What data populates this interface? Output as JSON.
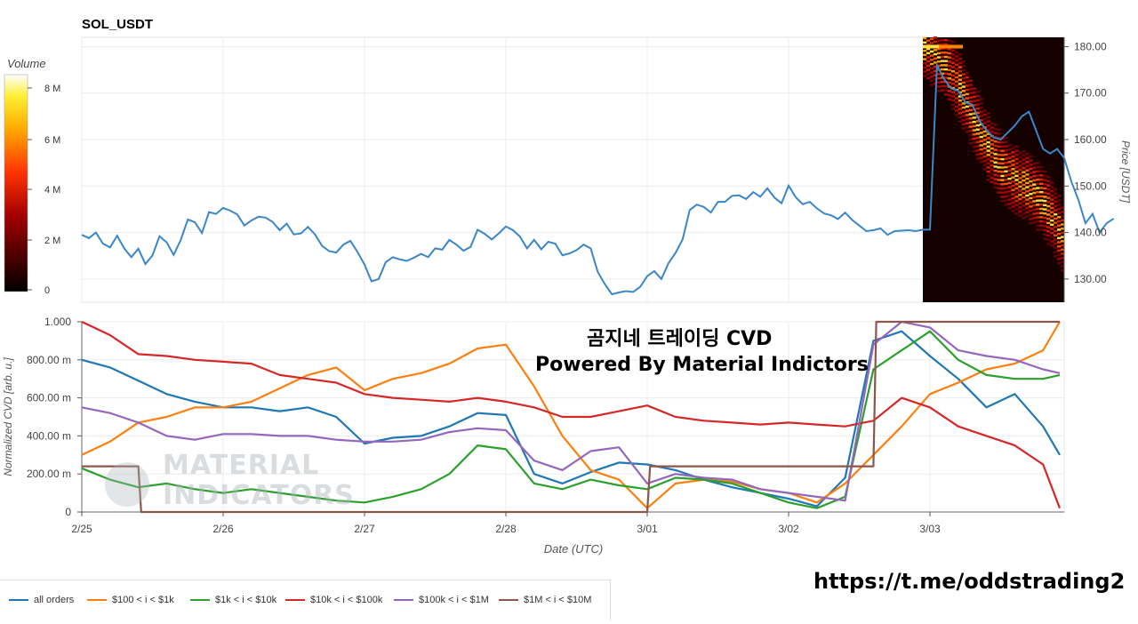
{
  "top_chart": {
    "title": "SOL_USDT",
    "colorbar_label": "Volume",
    "colorbar_ticks": [
      "8 M",
      "6 M",
      "4 M",
      "2 M",
      "0"
    ],
    "price_axis_label": "Price [USDT]",
    "price_ticks": [
      "180.00",
      "170.00",
      "160.00",
      "150.00",
      "140.00",
      "130.00"
    ]
  },
  "bottom_chart": {
    "ylabel": "Normalized CVD [arb. u.]",
    "xlabel": "Date (UTC)",
    "y_ticks": [
      "1.000",
      "800.00 m",
      "600.00 m",
      "400.00 m",
      "200.00 m",
      "0"
    ],
    "x_ticks": [
      "2/25",
      "2/26",
      "2/27",
      "2/28",
      "3/01",
      "3/02",
      "3/03"
    ]
  },
  "overlay": {
    "korean_title": "곰지네 트레이딩 CVD",
    "powered_by": "Powered By Material Indictors",
    "watermark_line1": "MATERIAL",
    "watermark_line2": "INDICATORS",
    "url": "https://t.me/oddstrading2"
  },
  "legend": [
    {
      "name": "all orders",
      "color": "#1f77b4"
    },
    {
      "name": "$100 < i < $1k",
      "color": "#ff7f0e"
    },
    {
      "name": "$1k < i < $10k",
      "color": "#2ca02c"
    },
    {
      "name": "$10k < i < $100k",
      "color": "#d62728"
    },
    {
      "name": "$100k < i < $1M",
      "color": "#9467bd"
    },
    {
      "name": "$1M < i < $10M",
      "color": "#8c564b"
    }
  ],
  "chart_data": [
    {
      "type": "line",
      "title": "SOL_USDT",
      "ylabel": "Price [USDT]",
      "ylim": [
        125,
        182
      ],
      "x_range": [
        "2/25",
        "3/03"
      ],
      "series": [
        {
          "name": "price",
          "x": [
            0,
            0.05,
            0.1,
            0.15,
            0.2,
            0.25,
            0.3,
            0.35,
            0.4,
            0.45,
            0.5,
            0.55,
            0.6,
            0.65,
            0.7,
            0.75,
            0.8,
            0.85,
            0.9,
            0.95,
            1.0,
            1.05,
            1.1,
            1.15,
            1.2,
            1.25,
            1.3,
            1.35,
            1.4,
            1.45,
            1.5,
            1.55,
            1.6,
            1.65,
            1.7,
            1.75,
            1.8,
            1.85,
            1.9,
            1.95,
            2.0,
            2.05,
            2.1,
            2.15,
            2.2,
            2.25,
            2.3,
            2.35,
            2.4,
            2.45,
            2.5,
            2.55,
            2.6,
            2.65,
            2.7,
            2.75,
            2.8,
            2.85,
            2.9,
            2.95,
            3.0,
            3.05,
            3.1,
            3.15,
            3.2,
            3.25,
            3.3,
            3.35,
            3.4,
            3.45,
            3.5,
            3.55,
            3.6,
            3.65,
            3.7,
            3.75,
            3.8,
            3.85,
            3.9,
            3.95,
            4.0,
            4.05,
            4.1,
            4.15,
            4.2,
            4.25,
            4.3,
            4.35,
            4.4,
            4.45,
            4.5,
            4.55,
            4.6,
            4.65,
            4.7,
            4.75,
            4.8,
            4.85,
            4.9,
            4.95,
            5.0,
            5.05,
            5.1,
            5.15,
            5.2,
            5.25,
            5.3,
            5.35,
            5.4,
            5.45,
            5.5,
            5.55,
            5.6,
            5.65,
            5.7,
            5.75,
            5.8,
            5.85,
            5.9,
            5.95,
            6.0
          ],
          "y": [
            139.5,
            138.8,
            140.0,
            137.6,
            136.8,
            139.3,
            136.6,
            134.7,
            136.5,
            133.2,
            135.1,
            139.2,
            137.9,
            135.2,
            138.4,
            142.8,
            142.2,
            139.9,
            144.4,
            144.0,
            145.3,
            144.7,
            143.9,
            141.5,
            142.6,
            143.4,
            143.2,
            142.3,
            140.5,
            141.9,
            139.6,
            139.8,
            141.2,
            139.6,
            137.1,
            136.0,
            135.7,
            137.4,
            138.2,
            135.8,
            133.1,
            129.5,
            130.0,
            133.6,
            134.7,
            134.2,
            133.9,
            134.6,
            135.4,
            134.7,
            136.6,
            136.3,
            138.4,
            137.4,
            136.1,
            136.9,
            140.6,
            139.7,
            138.5,
            139.8,
            141.3,
            140.5,
            139.1,
            136.6,
            138.4,
            136.4,
            138.0,
            137.6,
            135.1,
            135.5,
            136.2,
            137.4,
            136.6,
            131.5,
            128.9,
            126.7,
            127.1,
            127.4,
            127.2,
            128.3,
            130.6,
            131.7,
            130.0,
            133.4,
            135.6,
            138.5,
            144.8,
            146.0,
            145.5,
            144.3,
            146.6,
            146.6,
            147.9,
            148.0,
            147.2,
            148.7,
            147.7,
            149.5,
            147.5,
            146.3,
            150.1,
            147.6,
            146.1,
            146.6,
            145.2,
            144.1,
            143.7,
            142.9,
            144.3,
            142.7,
            141.5,
            140.3,
            140.5,
            140.9,
            139.5,
            140.3,
            140.4,
            140.5,
            140.3,
            140.6,
            140.6
          ]
        }
      ]
    },
    {
      "type": "line",
      "ylabel": "Normalized CVD [arb. u.]",
      "xlabel": "Date (UTC)",
      "ylim": [
        0,
        1.0
      ],
      "categories": [
        "2/25",
        "2/26",
        "2/27",
        "2/28",
        "3/01",
        "3/02",
        "3/03"
      ],
      "series": [
        {
          "name": "all orders",
          "x": [
            0,
            0.2,
            0.4,
            0.6,
            0.8,
            1.0,
            1.2,
            1.4,
            1.6,
            1.8,
            2.0,
            2.2,
            2.4,
            2.6,
            2.8,
            3.0,
            3.2,
            3.4,
            3.6,
            3.8,
            4.0,
            4.2,
            4.4,
            4.6,
            4.8,
            5.0,
            5.2,
            5.4,
            5.6,
            5.8,
            6.0,
            6.2,
            6.4,
            6.6,
            6.8,
            7.0
          ],
          "y": [
            0.8,
            0.76,
            0.69,
            0.62,
            0.58,
            0.55,
            0.55,
            0.53,
            0.55,
            0.5,
            0.36,
            0.39,
            0.4,
            0.45,
            0.52,
            0.51,
            0.2,
            0.15,
            0.21,
            0.26,
            0.25,
            0.22,
            0.17,
            0.13,
            0.1,
            0.07,
            0.03,
            0.18,
            0.9,
            0.95,
            0.82,
            0.7,
            0.55,
            0.62,
            0.45,
            0.3
          ]
        },
        {
          "name": "$100 < i < $1k",
          "x": [
            0,
            0.2,
            0.4,
            0.6,
            0.8,
            1.0,
            1.2,
            1.4,
            1.6,
            1.8,
            2.0,
            2.2,
            2.4,
            2.6,
            2.8,
            3.0,
            3.2,
            3.4,
            3.6,
            3.8,
            4.0,
            4.2,
            4.4,
            4.6,
            4.8,
            5.0,
            5.2,
            5.4,
            5.6,
            5.8,
            6.0,
            6.2,
            6.4,
            6.6,
            6.8,
            7.0
          ],
          "y": [
            0.3,
            0.37,
            0.47,
            0.5,
            0.55,
            0.55,
            0.58,
            0.65,
            0.72,
            0.76,
            0.64,
            0.7,
            0.73,
            0.78,
            0.86,
            0.88,
            0.66,
            0.4,
            0.22,
            0.17,
            0.02,
            0.15,
            0.17,
            0.16,
            0.12,
            0.1,
            0.05,
            0.15,
            0.3,
            0.45,
            0.62,
            0.68,
            0.75,
            0.78,
            0.85,
            1.0
          ]
        },
        {
          "name": "$1k < i < $10k",
          "x": [
            0,
            0.2,
            0.4,
            0.6,
            0.8,
            1.0,
            1.2,
            1.4,
            1.6,
            1.8,
            2.0,
            2.2,
            2.4,
            2.6,
            2.8,
            3.0,
            3.2,
            3.4,
            3.6,
            3.8,
            4.0,
            4.2,
            4.4,
            4.6,
            4.8,
            5.0,
            5.2,
            5.4,
            5.6,
            5.8,
            6.0,
            6.2,
            6.4,
            6.6,
            6.8,
            7.0
          ],
          "y": [
            0.23,
            0.17,
            0.13,
            0.15,
            0.12,
            0.1,
            0.12,
            0.1,
            0.08,
            0.06,
            0.05,
            0.08,
            0.12,
            0.2,
            0.35,
            0.33,
            0.15,
            0.12,
            0.17,
            0.14,
            0.12,
            0.18,
            0.17,
            0.15,
            0.1,
            0.05,
            0.02,
            0.08,
            0.75,
            0.85,
            0.95,
            0.8,
            0.72,
            0.7,
            0.7,
            0.72
          ]
        },
        {
          "name": "$10k < i < $100k",
          "x": [
            0,
            0.2,
            0.4,
            0.6,
            0.8,
            1.0,
            1.2,
            1.4,
            1.6,
            1.8,
            2.0,
            2.2,
            2.4,
            2.6,
            2.8,
            3.0,
            3.2,
            3.4,
            3.6,
            3.8,
            4.0,
            4.2,
            4.4,
            4.6,
            4.8,
            5.0,
            5.2,
            5.4,
            5.6,
            5.8,
            6.0,
            6.2,
            6.4,
            6.6,
            6.8,
            7.0
          ],
          "y": [
            1.0,
            0.93,
            0.83,
            0.82,
            0.8,
            0.79,
            0.78,
            0.72,
            0.7,
            0.68,
            0.62,
            0.6,
            0.59,
            0.58,
            0.6,
            0.58,
            0.55,
            0.5,
            0.5,
            0.53,
            0.56,
            0.5,
            0.48,
            0.47,
            0.46,
            0.47,
            0.46,
            0.45,
            0.48,
            0.6,
            0.55,
            0.45,
            0.4,
            0.35,
            0.25,
            0.02
          ]
        },
        {
          "name": "$100k < i < $1M",
          "x": [
            0,
            0.2,
            0.4,
            0.6,
            0.8,
            1.0,
            1.2,
            1.4,
            1.6,
            1.8,
            2.0,
            2.2,
            2.4,
            2.6,
            2.8,
            3.0,
            3.2,
            3.4,
            3.6,
            3.8,
            4.0,
            4.2,
            4.4,
            4.6,
            4.8,
            5.0,
            5.2,
            5.4,
            5.6,
            5.8,
            6.0,
            6.2,
            6.4,
            6.6,
            6.8,
            7.0
          ],
          "y": [
            0.55,
            0.52,
            0.47,
            0.4,
            0.38,
            0.41,
            0.41,
            0.4,
            0.4,
            0.38,
            0.37,
            0.37,
            0.38,
            0.42,
            0.44,
            0.43,
            0.27,
            0.22,
            0.32,
            0.34,
            0.15,
            0.2,
            0.18,
            0.17,
            0.12,
            0.1,
            0.08,
            0.06,
            0.88,
            1.0,
            0.97,
            0.85,
            0.82,
            0.8,
            0.75,
            0.73
          ]
        },
        {
          "name": "$1M < i < $10M",
          "x": [
            0,
            0.4,
            0.42,
            2.0,
            3.0,
            4.0,
            4.02,
            5.4,
            5.6,
            5.62,
            6.0,
            7.0
          ],
          "y": [
            0.24,
            0.24,
            0.0,
            0.0,
            0.0,
            0.0,
            0.24,
            0.24,
            0.24,
            1.0,
            1.0,
            1.0
          ]
        }
      ]
    }
  ]
}
